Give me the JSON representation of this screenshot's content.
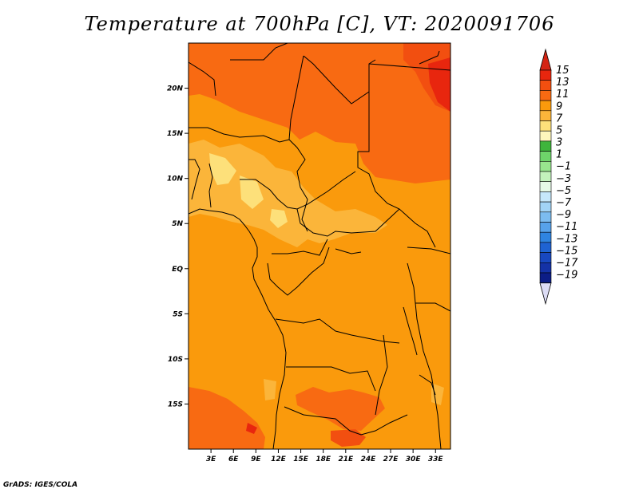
{
  "title": "Temperature at 700hPa [C], VT: 2020091706",
  "credit": "GrADS: IGES/COLA",
  "map": {
    "lon_range": [
      0,
      35
    ],
    "lat_range": [
      -20,
      25
    ],
    "lat_ticks": [
      {
        "value": 20,
        "label": "20N"
      },
      {
        "value": 15,
        "label": "15N"
      },
      {
        "value": 10,
        "label": "10N"
      },
      {
        "value": 5,
        "label": "5N"
      },
      {
        "value": 0,
        "label": "EQ"
      },
      {
        "value": -5,
        "label": "5S"
      },
      {
        "value": -10,
        "label": "10S"
      },
      {
        "value": -15,
        "label": "15S"
      }
    ],
    "lon_ticks": [
      {
        "value": 3,
        "label": "3E"
      },
      {
        "value": 6,
        "label": "6E"
      },
      {
        "value": 9,
        "label": "9E"
      },
      {
        "value": 12,
        "label": "12E"
      },
      {
        "value": 15,
        "label": "15E"
      },
      {
        "value": 18,
        "label": "18E"
      },
      {
        "value": 21,
        "label": "21E"
      },
      {
        "value": 24,
        "label": "24E"
      },
      {
        "value": 27,
        "label": "27E"
      },
      {
        "value": 30,
        "label": "30E"
      },
      {
        "value": 33,
        "label": "33E"
      }
    ]
  },
  "colorbar": {
    "labels": [
      "15",
      "13",
      "11",
      "9",
      "7",
      "5",
      "3",
      "1",
      "−1",
      "−3",
      "−5",
      "−7",
      "−9",
      "−11",
      "−13",
      "−15",
      "−17",
      "−19"
    ],
    "colors": [
      "#e8260e",
      "#f24f10",
      "#f86a12",
      "#fa9a0c",
      "#fbb53a",
      "#fde07a",
      "#fdf6bc",
      "#3fb53c",
      "#6ed46a",
      "#98e58e",
      "#c3f2bc",
      "#e6fae6",
      "#c6e8fb",
      "#a2d4f6",
      "#7cbcf0",
      "#57a2ea",
      "#2f84e0",
      "#1f63d2",
      "#1848c0",
      "#1432a6",
      "#0c1d86"
    ],
    "end_colors": {
      "top": "#d42414",
      "bottom": "#dcdcf5"
    }
  }
}
